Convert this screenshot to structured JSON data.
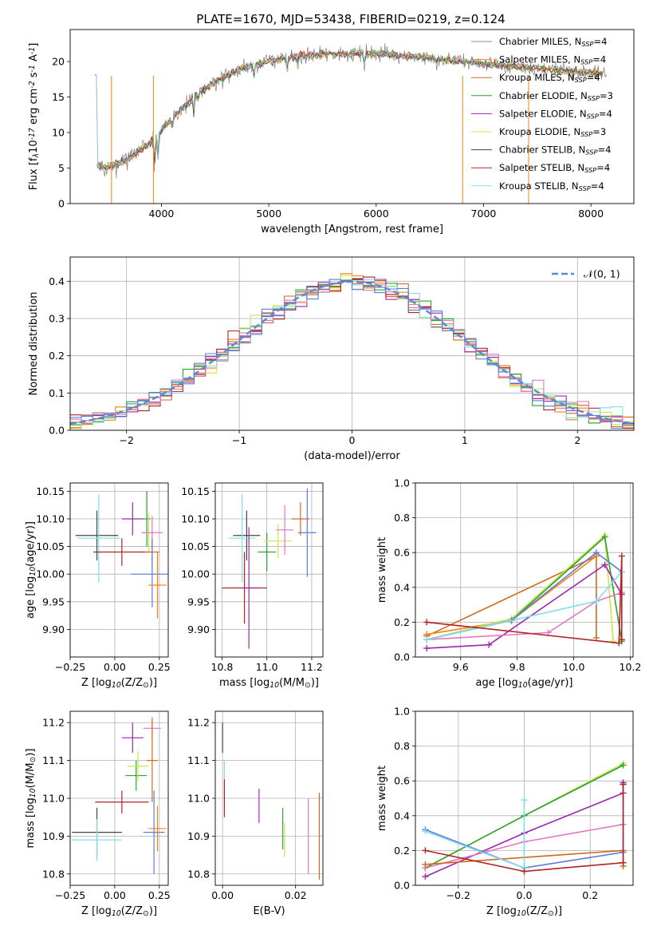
{
  "title": "PLATE=1670, MJD=53438, FIBERID=0219, z=0.124",
  "colors": {
    "chabrier_miles": "#8c8c8c",
    "salpeter_miles": "#ff7f0e",
    "kroupa_miles": "#d2691e",
    "chabrier_elodie": "#2ca02c",
    "salpeter_elodie": "#9c27b0",
    "kroupa_elodie": "#c8e650",
    "chabrier_stelib": "#444444",
    "salpeter_stelib": "#b22222",
    "kroupa_stelib": "#80deea",
    "pink": "#e377c2",
    "blue": "#5b7fd6",
    "normal_curve": "#5b8bd6"
  },
  "chart_data": [
    {
      "id": "spectrum",
      "type": "line",
      "xlabel": "wavelength [Angstrom, rest frame]",
      "ylabel": "Flux [f$_\\lambda$10$^{-17}$ erg cm$^{-2}$ s$^{-1}$ A$^{-1}$]",
      "xlim": [
        3150,
        8400
      ],
      "ylim": [
        0,
        24.5
      ],
      "xticks": [
        "4000",
        "5000",
        "6000",
        "7000",
        "8000"
      ],
      "yticks": [
        "0",
        "5",
        "10",
        "15",
        "20"
      ],
      "legend": "top-right",
      "legend_entries": [
        {
          "prefix": "Chabrier MILES, N",
          "sub": "SSP",
          "suffix": "=4"
        },
        {
          "prefix": "Salpeter MILES, N",
          "sub": "SSP",
          "suffix": "=4"
        },
        {
          "prefix": "Kroupa MILES, N",
          "sub": "SSP",
          "suffix": "=4"
        },
        {
          "prefix": "Chabrier ELODIE, N",
          "sub": "SSP",
          "suffix": "=3"
        },
        {
          "prefix": "Salpeter ELODIE, N",
          "sub": "SSP",
          "suffix": "=4"
        },
        {
          "prefix": "Kroupa ELODIE, N",
          "sub": "SSP",
          "suffix": "=3"
        },
        {
          "prefix": "Chabrier STELIB, N",
          "sub": "SSP",
          "suffix": "=4"
        },
        {
          "prefix": "Salpeter STELIB, N",
          "sub": "SSP",
          "suffix": "=4"
        },
        {
          "prefix": "Kroupa STELIB, N",
          "sub": "SSP",
          "suffix": "=4"
        }
      ],
      "continuum": {
        "x": [
          3400,
          3500,
          3600,
          3700,
          3800,
          3900,
          4000,
          4100,
          4200,
          4300,
          4400,
          4600,
          4800,
          5000,
          5200,
          5500,
          5800,
          6100,
          6400,
          6800,
          7200,
          7600,
          8000,
          8150
        ],
        "y": [
          5.0,
          5.2,
          5.6,
          6.4,
          7.5,
          8.6,
          10.3,
          12.0,
          13.6,
          14.9,
          16.2,
          18.0,
          19.3,
          20.1,
          20.6,
          21.0,
          21.2,
          21.1,
          20.6,
          20.0,
          19.4,
          18.9,
          18.4,
          18.2
        ]
      }
    },
    {
      "id": "residuals",
      "type": "histogram",
      "xlabel": "(data-model)/error",
      "ylabel": "Normed distribution",
      "xlim": [
        -2.5,
        2.5
      ],
      "ylim": [
        0,
        0.465
      ],
      "xticks": [
        "−2",
        "−1",
        "0",
        "1",
        "2"
      ],
      "yticks": [
        "0.0",
        "0.1",
        "0.2",
        "0.3",
        "0.4"
      ],
      "legend": "top-right",
      "legend_label": "𝒩(0, 1)",
      "bin_width": 0.1
    },
    {
      "id": "age_vs_Z",
      "type": "errorbar",
      "xlabel": "Z [log$_{10}$(Z/Z$_\\odot$)]",
      "ylabel": "age  [log$_{10}$(age/yr)]",
      "xlim": [
        -0.25,
        0.3
      ],
      "ylim": [
        9.85,
        10.165
      ],
      "xticks": [
        "−0.25",
        "0.00",
        "0.25"
      ],
      "yticks": [
        "9.90",
        "9.95",
        "10.00",
        "10.05",
        "10.10",
        "10.15"
      ],
      "points": [
        {
          "x": -0.1,
          "xerr": 0.12,
          "y": 10.07,
          "yerr": 0.045
        },
        {
          "x": -0.09,
          "xerr": 0.12,
          "y": 10.065,
          "yerr": 0.08
        },
        {
          "x": 0.04,
          "xerr": 0.16,
          "y": 10.04,
          "yerr": 0.025
        },
        {
          "x": 0.1,
          "xerr": 0.06,
          "y": 10.1,
          "yerr": 0.03
        },
        {
          "x": 0.18,
          "xerr": 0.02,
          "y": 10.1,
          "yerr": 0.05
        },
        {
          "x": 0.19,
          "xerr": 0.04,
          "y": 10.075,
          "yerr": 0.035
        },
        {
          "x": 0.21,
          "xerr": 0.06,
          "y": 10.075,
          "yerr": 0.03
        },
        {
          "x": 0.21,
          "xerr": 0.04,
          "y": 10.04,
          "yerr": 0.025
        },
        {
          "x": 0.21,
          "xerr": 0.12,
          "y": 10.0,
          "yerr": 0.06
        },
        {
          "x": 0.24,
          "xerr": 0.05,
          "y": 9.98,
          "yerr": 0.06
        }
      ]
    },
    {
      "id": "age_vs_mass",
      "type": "errorbar",
      "xlabel": "mass [log$_{10}$(M/M$_\\odot$)]",
      "ylabel": "",
      "xlim": [
        10.77,
        11.25
      ],
      "ylim": [
        9.85,
        10.165
      ],
      "xticks": [
        "10.8",
        "11.0",
        "11.2"
      ],
      "yticks": [
        "9.90",
        "9.95",
        "10.00",
        "10.05",
        "10.10",
        "10.15"
      ],
      "points": [
        {
          "x": 10.91,
          "xerr": 0.06,
          "y": 10.07,
          "yerr": 0.045
        },
        {
          "x": 10.89,
          "xerr": 0.06,
          "y": 10.065,
          "yerr": 0.08
        },
        {
          "x": 10.9,
          "xerr": 0.1,
          "y": 9.975,
          "yerr": 0.065
        },
        {
          "x": 10.92,
          "xerr": 0.04,
          "y": 9.975,
          "yerr": 0.11
        },
        {
          "x": 11.0,
          "xerr": 0.04,
          "y": 10.04,
          "yerr": 0.035
        },
        {
          "x": 11.05,
          "xerr": 0.06,
          "y": 10.06,
          "yerr": 0.03
        },
        {
          "x": 11.08,
          "xerr": 0.04,
          "y": 10.08,
          "yerr": 0.045
        },
        {
          "x": 11.15,
          "xerr": 0.04,
          "y": 10.1,
          "yerr": 0.03
        },
        {
          "x": 11.18,
          "xerr": 0.04,
          "y": 10.075,
          "yerr": 0.08
        }
      ]
    },
    {
      "id": "weight_vs_age",
      "type": "line",
      "xlabel": "age  [log$_{10}$(age/yr)]",
      "ylabel": "mass weight",
      "xlim": [
        9.44,
        10.21
      ],
      "ylim": [
        0,
        1.0
      ],
      "xticks": [
        "9.6",
        "9.8",
        "10.0",
        "10.2"
      ],
      "yticks": [
        "0.0",
        "0.2",
        "0.4",
        "0.6",
        "0.8",
        "1.0"
      ],
      "series": [
        {
          "color": "kroupa_miles",
          "x": [
            9.48,
            10.08,
            10.08
          ],
          "y": [
            0.12,
            0.58,
            0.11
          ]
        },
        {
          "color": "salpeter_miles",
          "x": [
            9.48,
            9.78,
            10.08
          ],
          "y": [
            0.13,
            0.21,
            0.58
          ]
        },
        {
          "color": "kroupa_elodie",
          "x": [
            9.48,
            9.78,
            10.11,
            10.14
          ],
          "y": [
            0.1,
            0.22,
            0.7,
            0.09
          ]
        },
        {
          "color": "chabrier_elodie",
          "x": [
            9.48,
            9.78,
            10.11,
            10.17
          ],
          "y": [
            0.1,
            0.21,
            0.69,
            0.09
          ]
        },
        {
          "color": "salpeter_elodie",
          "x": [
            9.48,
            9.7,
            10.11,
            10.17
          ],
          "y": [
            0.05,
            0.07,
            0.53,
            0.36
          ]
        },
        {
          "color": "pink",
          "x": [
            9.48,
            9.91,
            10.08,
            10.17
          ],
          "y": [
            0.1,
            0.14,
            0.32,
            0.37
          ]
        },
        {
          "color": "blue",
          "x": [
            9.48,
            9.78,
            10.08,
            10.17
          ],
          "y": [
            0.1,
            0.21,
            0.6,
            0.49
          ]
        },
        {
          "color": "kroupa_stelib",
          "x": [
            9.48,
            10.08,
            10.17
          ],
          "y": [
            0.1,
            0.32,
            0.49
          ]
        },
        {
          "color": "salpeter_stelib",
          "x": [
            9.48,
            10.16,
            10.17,
            10.17
          ],
          "y": [
            0.2,
            0.08,
            0.58,
            0.1
          ]
        }
      ]
    },
    {
      "id": "mass_vs_Z",
      "type": "errorbar",
      "xlabel": "Z [log$_{10}$(Z/Z$_\\odot$)]",
      "ylabel": "mass [log$_{10}$(M/M$_\\odot$)]",
      "xlim": [
        -0.25,
        0.3
      ],
      "ylim": [
        10.77,
        11.23
      ],
      "xticks": [
        "−0.25",
        "0.00",
        "0.25"
      ],
      "yticks": [
        "10.8",
        "10.9",
        "11.0",
        "11.1",
        "11.2"
      ],
      "points": [
        {
          "x": -0.1,
          "xerr": 0.14,
          "y": 10.91,
          "yerr": 0.065
        },
        {
          "x": -0.1,
          "xerr": 0.14,
          "y": 10.89,
          "yerr": 0.055
        },
        {
          "x": 0.04,
          "xerr": 0.15,
          "y": 10.99,
          "yerr": 0.03
        },
        {
          "x": 0.1,
          "xerr": 0.06,
          "y": 11.16,
          "yerr": 0.04
        },
        {
          "x": 0.12,
          "xerr": 0.06,
          "y": 11.06,
          "yerr": 0.04
        },
        {
          "x": 0.13,
          "xerr": 0.06,
          "y": 11.085,
          "yerr": 0.04
        },
        {
          "x": 0.21,
          "xerr": 0.05,
          "y": 11.185,
          "yerr": 0.03
        },
        {
          "x": 0.21,
          "xerr": 0.03,
          "y": 11.1,
          "yerr": 0.11
        },
        {
          "x": 0.22,
          "xerr": 0.06,
          "y": 10.91,
          "yerr": 0.11
        },
        {
          "x": 0.24,
          "xerr": 0.05,
          "y": 10.92,
          "yerr": 0.06
        }
      ]
    },
    {
      "id": "mass_vs_ebv",
      "type": "errorbar",
      "xlabel": "E(B-V)",
      "ylabel": "",
      "xlim": [
        -0.002,
        0.0275
      ],
      "ylim": [
        10.77,
        11.23
      ],
      "xticks": [
        "0.00",
        "0.02"
      ],
      "yticks": [
        "10.8",
        "10.9",
        "11.0",
        "11.1",
        "11.2"
      ],
      "points": [
        {
          "x": 0.0,
          "y": 11.16,
          "yerr": 0.04
        },
        {
          "x": 0.0005,
          "y": 11.05,
          "yerr": 0.05
        },
        {
          "x": 0.0005,
          "y": 11.0,
          "yerr": 0.05
        },
        {
          "x": 0.01,
          "y": 10.98,
          "yerr": 0.045
        },
        {
          "x": 0.0165,
          "y": 10.92,
          "yerr": 0.055
        },
        {
          "x": 0.017,
          "y": 10.89,
          "yerr": 0.045
        },
        {
          "x": 0.0235,
          "y": 10.9,
          "yerr": 0.1
        },
        {
          "x": 0.0265,
          "y": 10.9,
          "yerr": 0.115
        }
      ]
    },
    {
      "id": "weight_vs_Z",
      "type": "line",
      "xlabel": "Z [log$_{10}$(Z/Z$_\\odot$)]",
      "ylabel": "mass weight",
      "xlim": [
        -0.33,
        0.33
      ],
      "ylim": [
        0,
        1.0
      ],
      "xticks": [
        "−0.2",
        "0.0",
        "0.2"
      ],
      "yticks": [
        "0.0",
        "0.2",
        "0.4",
        "0.6",
        "0.8",
        "1.0"
      ],
      "series": [
        {
          "color": "kroupa_elodie",
          "x": [
            -0.3,
            0.0,
            0.3
          ],
          "y": [
            0.1,
            0.4,
            0.7
          ]
        },
        {
          "color": "chabrier_elodie",
          "x": [
            -0.3,
            0.0,
            0.3
          ],
          "y": [
            0.1,
            0.4,
            0.69
          ]
        },
        {
          "color": "salpeter_elodie",
          "x": [
            -0.3,
            0.0,
            0.3,
            0.3
          ],
          "y": [
            0.05,
            0.3,
            0.53,
            0.59
          ]
        },
        {
          "color": "pink",
          "x": [
            -0.3,
            0.0,
            0.3
          ],
          "y": [
            0.1,
            0.25,
            0.35
          ]
        },
        {
          "color": "kroupa_miles",
          "x": [
            -0.3,
            0.3,
            0.3
          ],
          "y": [
            0.12,
            0.2,
            0.11
          ]
        },
        {
          "color": "blue",
          "x": [
            -0.3,
            0.0,
            0.3,
            0.3
          ],
          "y": [
            0.32,
            0.1,
            0.19,
            0.58
          ]
        },
        {
          "color": "kroupa_stelib",
          "x": [
            -0.3,
            0.0,
            0.0
          ],
          "y": [
            0.31,
            0.1,
            0.49
          ]
        },
        {
          "color": "salpeter_stelib",
          "x": [
            -0.3,
            0.0,
            0.3,
            0.3
          ],
          "y": [
            0.2,
            0.08,
            0.13,
            0.58
          ]
        }
      ]
    }
  ]
}
